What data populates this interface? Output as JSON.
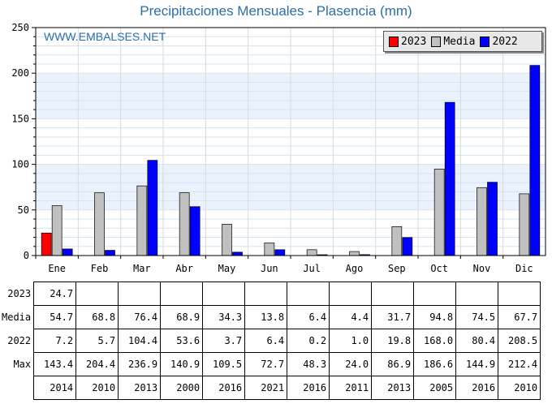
{
  "title": "Precipitaciones Mensuales - Plasencia (mm)",
  "watermark": "WWW.EMBALSES.NET",
  "legend": [
    {
      "label": "2023",
      "color": "#ff0000"
    },
    {
      "label": "Media",
      "color": "#c0c0c0"
    },
    {
      "label": "2022",
      "color": "#0000ff"
    }
  ],
  "chart_data": {
    "type": "bar",
    "categories": [
      "Ene",
      "Feb",
      "Mar",
      "Abr",
      "May",
      "Jun",
      "Jul",
      "Ago",
      "Sep",
      "Oct",
      "Nov",
      "Dic"
    ],
    "ylim": [
      0,
      250
    ],
    "yticks": [
      0,
      50,
      100,
      150,
      200,
      250
    ],
    "series": [
      {
        "name": "2023",
        "color": "#ff0000",
        "values": [
          24.7,
          null,
          null,
          null,
          null,
          null,
          null,
          null,
          null,
          null,
          null,
          null
        ]
      },
      {
        "name": "Media",
        "color": "#c0c0c0",
        "values": [
          54.7,
          68.8,
          76.4,
          68.9,
          34.3,
          13.8,
          6.4,
          4.4,
          31.7,
          94.8,
          74.5,
          67.7
        ]
      },
      {
        "name": "2022",
        "color": "#0000ff",
        "values": [
          7.2,
          5.7,
          104.4,
          53.6,
          3.7,
          6.4,
          0.2,
          1.0,
          19.8,
          168.0,
          80.4,
          208.5
        ]
      }
    ]
  },
  "table": {
    "rows": [
      {
        "label": "2023",
        "cells": [
          "24.7",
          "",
          "",
          "",
          "",
          "",
          "",
          "",
          "",
          "",
          "",
          ""
        ]
      },
      {
        "label": "Media",
        "cells": [
          "54.7",
          "68.8",
          "76.4",
          "68.9",
          "34.3",
          "13.8",
          "6.4",
          "4.4",
          "31.7",
          "94.8",
          "74.5",
          "67.7"
        ]
      },
      {
        "label": "2022",
        "cells": [
          "7.2",
          "5.7",
          "104.4",
          "53.6",
          "3.7",
          "6.4",
          "0.2",
          "1.0",
          "19.8",
          "168.0",
          "80.4",
          "208.5"
        ]
      },
      {
        "label": "Max",
        "cells": [
          "143.4",
          "204.4",
          "236.9",
          "140.9",
          "109.5",
          "72.7",
          "48.3",
          "24.0",
          "86.9",
          "186.6",
          "144.9",
          "212.4"
        ]
      },
      {
        "label": "",
        "cells": [
          "2014",
          "2010",
          "2013",
          "2000",
          "2016",
          "2021",
          "2016",
          "2011",
          "2013",
          "2005",
          "2016",
          "2010"
        ]
      }
    ]
  }
}
